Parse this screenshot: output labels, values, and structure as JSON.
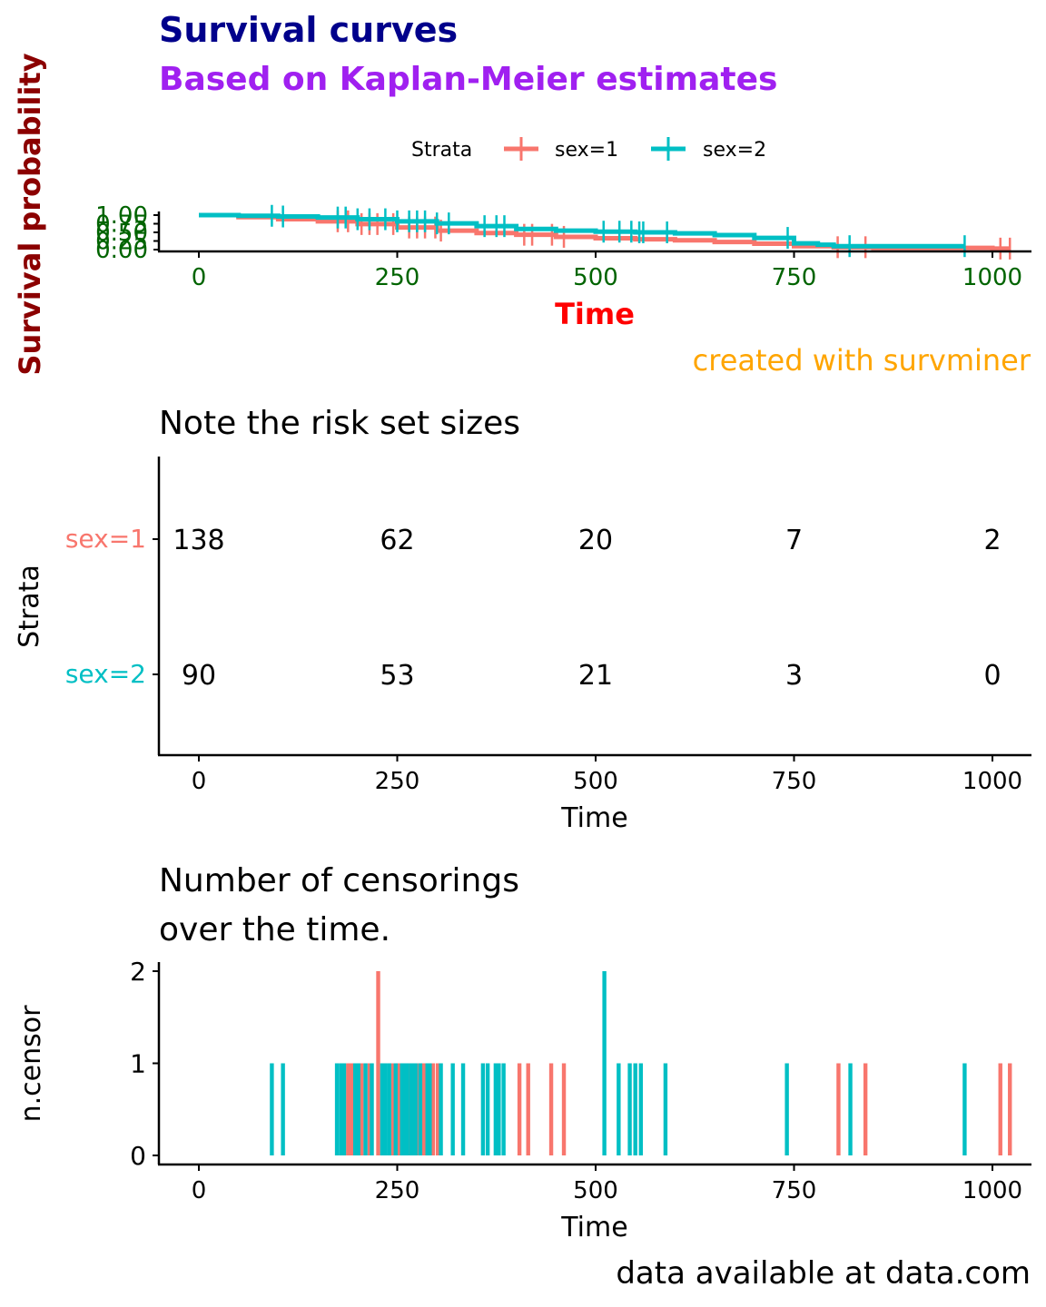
{
  "colors": {
    "sex1": "#F8766D",
    "sex2": "#00BFC4",
    "title": "#00008B",
    "subtitle": "#A020F0",
    "ylab_main": "#8B0000",
    "tick_main": "#006400",
    "xlab_main": "#FF0000",
    "caption_main": "#FFA500",
    "axis": "#000000"
  },
  "chart_data": [
    {
      "type": "line",
      "panel": "survival-curves",
      "title": "Survival curves",
      "subtitle": "Based on Kaplan-Meier estimates",
      "caption": "created with survminer",
      "xlabel": "Time",
      "ylabel": "Survival probability",
      "xlim": [
        -50,
        1050
      ],
      "ylim": [
        0,
        1
      ],
      "xticks": [
        0,
        250,
        500,
        750,
        1000
      ],
      "xtick_labels": [
        "0",
        "250",
        "500",
        "750",
        "1000"
      ],
      "yticks": [
        0,
        0.25,
        0.5,
        0.75,
        1.0
      ],
      "ytick_labels": [
        "0.00",
        "0.25",
        "0.50",
        "0.75",
        "1.00"
      ],
      "legend": {
        "title": "Strata",
        "position": "top",
        "entries": [
          "sex=1",
          "sex=2"
        ]
      },
      "series": [
        {
          "name": "sex=1",
          "color_key": "sex1",
          "steps": [
            [
              0,
              1.0
            ],
            [
              50,
              0.94
            ],
            [
              100,
              0.88
            ],
            [
              150,
              0.82
            ],
            [
              200,
              0.74
            ],
            [
              250,
              0.64
            ],
            [
              300,
              0.55
            ],
            [
              350,
              0.48
            ],
            [
              400,
              0.43
            ],
            [
              450,
              0.37
            ],
            [
              500,
              0.33
            ],
            [
              550,
              0.3
            ],
            [
              600,
              0.27
            ],
            [
              650,
              0.22
            ],
            [
              700,
              0.17
            ],
            [
              750,
              0.1
            ],
            [
              800,
              0.07
            ],
            [
              850,
              0.05
            ],
            [
              950,
              0.05
            ],
            [
              1000,
              0.03
            ],
            [
              1022,
              0.03
            ]
          ],
          "censor_times": [
            175,
            188,
            205,
            215,
            225,
            245,
            265,
            275,
            285,
            298,
            305,
            410,
            420,
            445,
            460,
            805,
            840,
            1010,
            1022
          ]
        },
        {
          "name": "sex=2",
          "color_key": "sex2",
          "steps": [
            [
              0,
              1.0
            ],
            [
              50,
              0.98
            ],
            [
              100,
              0.96
            ],
            [
              150,
              0.93
            ],
            [
              200,
              0.88
            ],
            [
              250,
              0.82
            ],
            [
              300,
              0.76
            ],
            [
              350,
              0.68
            ],
            [
              400,
              0.6
            ],
            [
              450,
              0.55
            ],
            [
              500,
              0.52
            ],
            [
              550,
              0.5
            ],
            [
              600,
              0.47
            ],
            [
              650,
              0.42
            ],
            [
              700,
              0.34
            ],
            [
              750,
              0.18
            ],
            [
              780,
              0.14
            ],
            [
              800,
              0.1
            ],
            [
              965,
              0.1
            ]
          ],
          "censor_times": [
            92,
            106,
            175,
            185,
            200,
            215,
            235,
            250,
            265,
            275,
            285,
            300,
            315,
            360,
            375,
            385,
            510,
            530,
            545,
            555,
            560,
            590,
            742,
            820,
            965
          ]
        }
      ]
    },
    {
      "type": "table",
      "panel": "risk-table",
      "title": "Note the risk set sizes",
      "xlabel": "Time",
      "ylabel": "Strata",
      "xticks": [
        0,
        250,
        500,
        750,
        1000
      ],
      "xtick_labels": [
        "0",
        "250",
        "500",
        "750",
        "1000"
      ],
      "rows": [
        {
          "label": "sex=1",
          "color_key": "sex1",
          "values": [
            "138",
            "62",
            "20",
            "7",
            "2"
          ]
        },
        {
          "label": "sex=2",
          "color_key": "sex2",
          "values": [
            "90",
            "53",
            "21",
            "3",
            "0"
          ]
        }
      ]
    },
    {
      "type": "bar",
      "panel": "censor-plot",
      "title": "Number of censorings\nover the time.",
      "title_lines": [
        "Number of censorings",
        "over the time."
      ],
      "caption": "data available at data.com",
      "xlabel": "Time",
      "ylabel": "n.censor",
      "xlim": [
        -50,
        1050
      ],
      "ylim": [
        0,
        2
      ],
      "xticks": [
        0,
        250,
        500,
        750,
        1000
      ],
      "xtick_labels": [
        "0",
        "250",
        "500",
        "750",
        "1000"
      ],
      "yticks": [
        0,
        1,
        2
      ],
      "ytick_labels": [
        "0",
        "1",
        "2"
      ],
      "series": [
        {
          "name": "sex=1",
          "color_key": "sex1",
          "bars": [
            [
              188,
              1
            ],
            [
              192,
              1
            ],
            [
              205,
              1
            ],
            [
              215,
              1
            ],
            [
              226,
              2
            ],
            [
              245,
              1
            ],
            [
              252,
              1
            ],
            [
              265,
              1
            ],
            [
              276,
              1
            ],
            [
              283,
              1
            ],
            [
              295,
              1
            ],
            [
              301,
              1
            ],
            [
              404,
              1
            ],
            [
              415,
              1
            ],
            [
              444,
              1
            ],
            [
              460,
              1
            ],
            [
              806,
              1
            ],
            [
              840,
              1
            ],
            [
              1010,
              1
            ],
            [
              1022,
              1
            ]
          ]
        },
        {
          "name": "sex=2",
          "color_key": "sex2",
          "bars": [
            [
              92,
              1
            ],
            [
              106,
              1
            ],
            [
              174,
              1
            ],
            [
              179,
              1
            ],
            [
              183,
              1
            ],
            [
              197,
              1
            ],
            [
              201,
              1
            ],
            [
              210,
              1
            ],
            [
              218,
              1
            ],
            [
              231,
              1
            ],
            [
              235,
              1
            ],
            [
              240,
              1
            ],
            [
              248,
              1
            ],
            [
              256,
              1
            ],
            [
              259,
              1
            ],
            [
              262,
              1
            ],
            [
              267,
              1
            ],
            [
              270,
              1
            ],
            [
              273,
              1
            ],
            [
              279,
              1
            ],
            [
              288,
              1
            ],
            [
              291,
              1
            ],
            [
              305,
              1
            ],
            [
              320,
              1
            ],
            [
              333,
              1
            ],
            [
              358,
              1
            ],
            [
              364,
              1
            ],
            [
              374,
              1
            ],
            [
              378,
              1
            ],
            [
              384,
              1
            ],
            [
              511,
              2
            ],
            [
              529,
              1
            ],
            [
              543,
              1
            ],
            [
              550,
              1
            ],
            [
              557,
              1
            ],
            [
              588,
              1
            ],
            [
              741,
              1
            ],
            [
              821,
              1
            ],
            [
              965,
              1
            ]
          ]
        }
      ]
    }
  ]
}
